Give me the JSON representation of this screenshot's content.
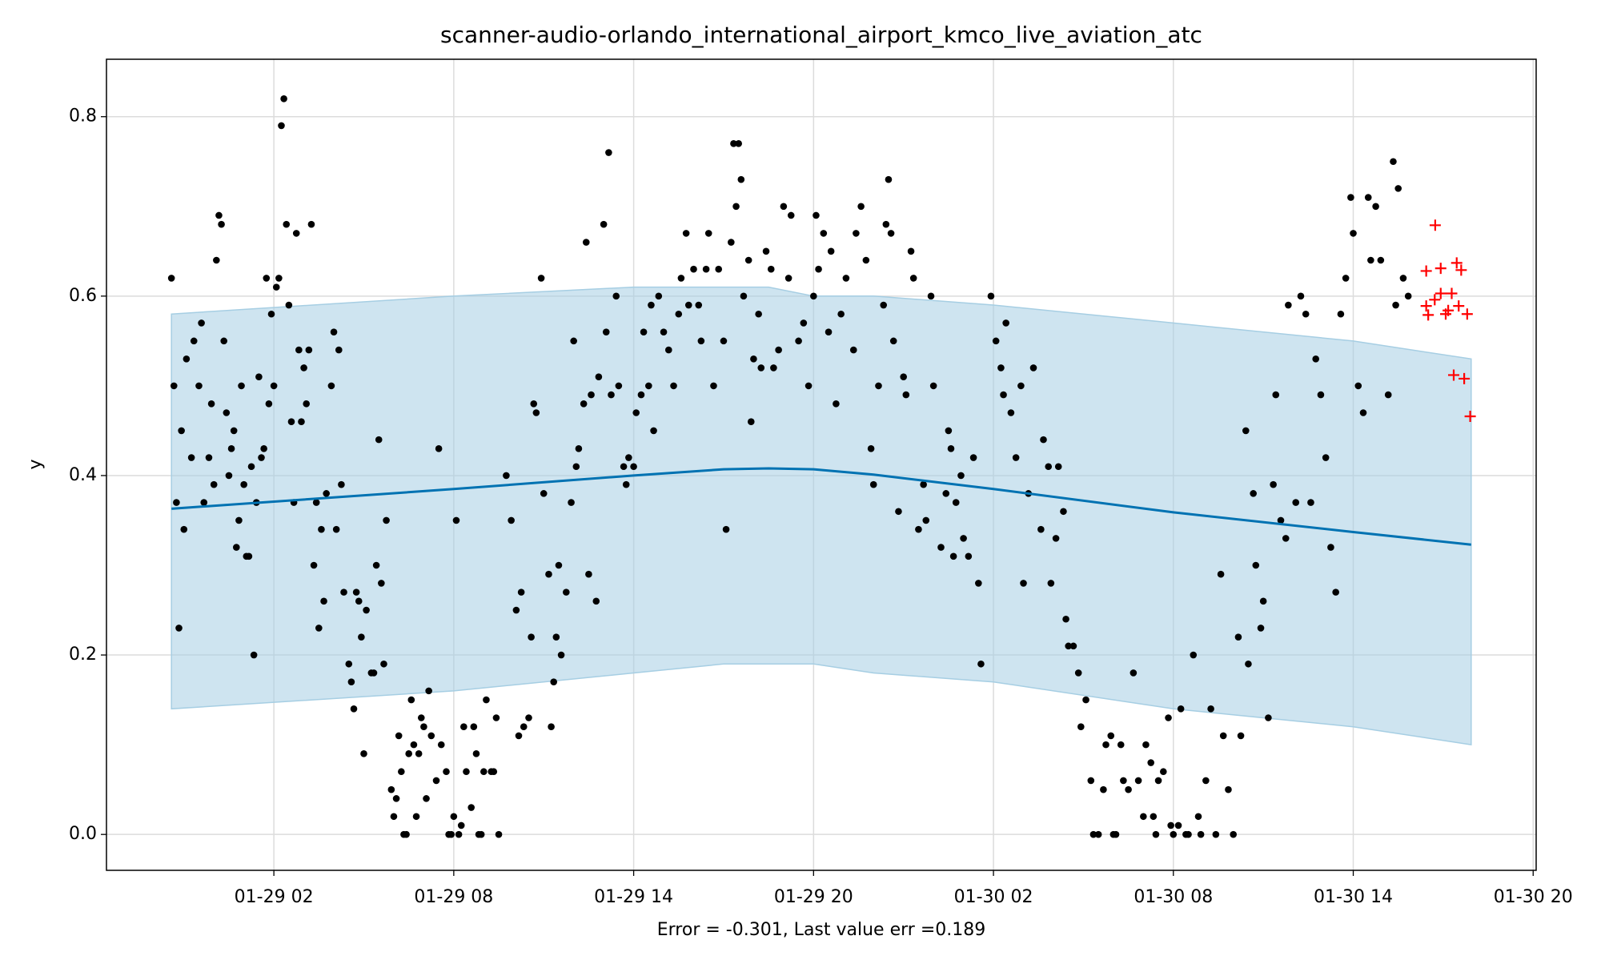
{
  "chart_data": {
    "type": "forecast",
    "title": "scanner-audio-orlando_international_airport_kmco_live_aviation_atc",
    "xlabel": "Error = -0.301, Last value err =0.189",
    "ylabel": "y",
    "xlim": [
      "01-28 20:25",
      "01-30 20:06"
    ],
    "xticks": [
      "01-29 02",
      "01-29 08",
      "01-29 14",
      "01-29 20",
      "01-30 02",
      "01-30 08",
      "01-30 14",
      "01-30 20"
    ],
    "ylim": [
      -0.04,
      0.864
    ],
    "yticks": [
      {
        "value": 0,
        "label": "0.0"
      },
      0.2,
      0.4,
      0.6,
      0.8
    ],
    "grid": true,
    "forecast": {
      "color": "#0072b2",
      "band_color": "#a6cee3",
      "x": [
        "01-28 22:35",
        "01-29 08:00",
        "01-29 14:00",
        "01-29 17:00",
        "01-29 18:30",
        "01-29 20:00",
        "01-29 22:00",
        "01-30 02:00",
        "01-30 08:00",
        "01-30 14:00",
        "01-30 17:56"
      ],
      "values": [
        0.363,
        0.385,
        0.4,
        0.407,
        0.408,
        0.407,
        0.401,
        0.385,
        0.359,
        0.337,
        0.323
      ],
      "upper": [
        0.58,
        0.6,
        0.61,
        0.61,
        0.61,
        0.6,
        0.6,
        0.59,
        0.57,
        0.55,
        0.53
      ],
      "lower": [
        0.14,
        0.16,
        0.18,
        0.19,
        0.19,
        0.19,
        0.18,
        0.17,
        0.14,
        0.12,
        0.1
      ]
    },
    "points": {
      "color": "#000000",
      "x": [
        "01-28 22:35",
        "01-28 22:40",
        "01-28 22:45",
        "01-28 22:50",
        "01-28 22:55",
        "01-28 23:00",
        "01-28 23:05",
        "01-28 23:15",
        "01-28 23:20",
        "01-28 23:30",
        "01-28 23:35",
        "01-28 23:40",
        "01-28 23:50",
        "01-28 23:55",
        "01-29 00:00",
        "01-29 00:05",
        "01-29 00:10",
        "01-29 00:15",
        "01-29 00:20",
        "01-29 00:25",
        "01-29 00:30",
        "01-29 00:35",
        "01-29 00:40",
        "01-29 00:45",
        "01-29 00:50",
        "01-29 00:55",
        "01-29 01:00",
        "01-29 01:05",
        "01-29 01:10",
        "01-29 01:15",
        "01-29 01:20",
        "01-29 01:25",
        "01-29 01:30",
        "01-29 01:35",
        "01-29 01:40",
        "01-29 01:45",
        "01-29 01:50",
        "01-29 01:55",
        "01-29 02:00",
        "01-29 02:05",
        "01-29 02:10",
        "01-29 02:15",
        "01-29 02:20",
        "01-29 02:25",
        "01-29 02:30",
        "01-29 02:35",
        "01-29 02:40",
        "01-29 02:45",
        "01-29 02:50",
        "01-29 02:55",
        "01-29 03:00",
        "01-29 03:05",
        "01-29 03:10",
        "01-29 03:15",
        "01-29 03:20",
        "01-29 03:25",
        "01-29 03:30",
        "01-29 03:35",
        "01-29 03:40",
        "01-29 03:45",
        "01-29 03:55",
        "01-29 04:00",
        "01-29 04:05",
        "01-29 04:10",
        "01-29 04:15",
        "01-29 04:20",
        "01-29 04:30",
        "01-29 04:35",
        "01-29 04:40",
        "01-29 04:45",
        "01-29 04:50",
        "01-29 04:55",
        "01-29 05:00",
        "01-29 05:05",
        "01-29 05:15",
        "01-29 05:20",
        "01-29 05:25",
        "01-29 05:30",
        "01-29 05:35",
        "01-29 05:40",
        "01-29 05:45",
        "01-29 05:55",
        "01-29 06:00",
        "01-29 06:05",
        "01-29 06:10",
        "01-29 06:15",
        "01-29 06:20",
        "01-29 06:25",
        "01-29 06:30",
        "01-29 06:35",
        "01-29 06:40",
        "01-29 06:45",
        "01-29 06:50",
        "01-29 06:55",
        "01-29 07:00",
        "01-29 07:05",
        "01-29 07:10",
        "01-29 07:15",
        "01-29 07:25",
        "01-29 07:30",
        "01-29 07:35",
        "01-29 07:45",
        "01-29 07:50",
        "01-29 07:55",
        "01-29 08:00",
        "01-29 08:05",
        "01-29 08:10",
        "01-29 08:15",
        "01-29 08:20",
        "01-29 08:25",
        "01-29 08:35",
        "01-29 08:40",
        "01-29 08:45",
        "01-29 08:50",
        "01-29 08:55",
        "01-29 09:00",
        "01-29 09:05",
        "01-29 09:15",
        "01-29 09:20",
        "01-29 09:25",
        "01-29 09:30",
        "01-29 09:45",
        "01-29 09:55",
        "01-29 10:05",
        "01-29 10:10",
        "01-29 10:15",
        "01-29 10:20",
        "01-29 10:30",
        "01-29 10:35",
        "01-29 10:40",
        "01-29 10:45",
        "01-29 10:55",
        "01-29 11:00",
        "01-29 11:10",
        "01-29 11:15",
        "01-29 11:20",
        "01-29 11:25",
        "01-29 11:30",
        "01-29 11:35",
        "01-29 11:45",
        "01-29 11:55",
        "01-29 12:00",
        "01-29 12:05",
        "01-29 12:10",
        "01-29 12:20",
        "01-29 12:25",
        "01-29 12:30",
        "01-29 12:35",
        "01-29 12:45",
        "01-29 12:50",
        "01-29 13:00",
        "01-29 13:05",
        "01-29 13:10",
        "01-29 13:15",
        "01-29 13:25",
        "01-29 13:30",
        "01-29 13:40",
        "01-29 13:45",
        "01-29 13:50",
        "01-29 14:00",
        "01-29 14:05",
        "01-29 14:15",
        "01-29 14:20",
        "01-29 14:30",
        "01-29 14:35",
        "01-29 14:40",
        "01-29 14:50",
        "01-29 15:00",
        "01-29 15:10",
        "01-29 15:20",
        "01-29 15:30",
        "01-29 15:35",
        "01-29 15:45",
        "01-29 15:50",
        "01-29 16:00",
        "01-29 16:10",
        "01-29 16:15",
        "01-29 16:25",
        "01-29 16:30",
        "01-29 16:40",
        "01-29 16:50",
        "01-29 17:00",
        "01-29 17:05",
        "01-29 17:15",
        "01-29 17:20",
        "01-29 17:25",
        "01-29 17:30",
        "01-29 17:35",
        "01-29 17:40",
        "01-29 17:50",
        "01-29 17:55",
        "01-29 18:00",
        "01-29 18:10",
        "01-29 18:15",
        "01-29 18:25",
        "01-29 18:35",
        "01-29 18:40",
        "01-29 18:50",
        "01-29 19:00",
        "01-29 19:10",
        "01-29 19:15",
        "01-29 19:30",
        "01-29 19:40",
        "01-29 19:50",
        "01-29 20:00",
        "01-29 20:05",
        "01-29 20:10",
        "01-29 20:20",
        "01-29 20:30",
        "01-29 20:35",
        "01-29 20:45",
        "01-29 20:55",
        "01-29 21:05",
        "01-29 21:20",
        "01-29 21:25",
        "01-29 21:35",
        "01-29 21:45",
        "01-29 21:55",
        "01-29 22:00",
        "01-29 22:10",
        "01-29 22:20",
        "01-29 22:25",
        "01-29 22:30",
        "01-29 22:35",
        "01-29 22:40",
        "01-29 22:50",
        "01-29 23:00",
        "01-29 23:05",
        "01-29 23:15",
        "01-29 23:20",
        "01-29 23:30",
        "01-29 23:40",
        "01-29 23:45",
        "01-29 23:55",
        "01-30 00:00",
        "01-30 00:15",
        "01-30 00:25",
        "01-30 00:30",
        "01-30 00:35",
        "01-30 00:40",
        "01-30 00:45",
        "01-30 00:55",
        "01-30 01:00",
        "01-30 01:10",
        "01-30 01:20",
        "01-30 01:30",
        "01-30 01:35",
        "01-30 01:55",
        "01-30 02:05",
        "01-30 02:15",
        "01-30 02:20",
        "01-30 02:25",
        "01-30 02:35",
        "01-30 02:45",
        "01-30 02:55",
        "01-30 03:00",
        "01-30 03:10",
        "01-30 03:20",
        "01-30 03:35",
        "01-30 03:40",
        "01-30 03:50",
        "01-30 03:55",
        "01-30 04:05",
        "01-30 04:10",
        "01-30 04:20",
        "01-30 04:25",
        "01-30 04:30",
        "01-30 04:40",
        "01-30 04:50",
        "01-30 04:55",
        "01-30 05:05",
        "01-30 05:15",
        "01-30 05:20",
        "01-30 05:30",
        "01-30 05:40",
        "01-30 05:45",
        "01-30 05:55",
        "01-30 06:00",
        "01-30 06:05",
        "01-30 06:15",
        "01-30 06:20",
        "01-30 06:30",
        "01-30 06:40",
        "01-30 06:50",
        "01-30 07:00",
        "01-30 07:05",
        "01-30 07:15",
        "01-30 07:20",
        "01-30 07:25",
        "01-30 07:30",
        "01-30 07:40",
        "01-30 07:50",
        "01-30 07:55",
        "01-30 08:00",
        "01-30 08:10",
        "01-30 08:15",
        "01-30 08:25",
        "01-30 08:30",
        "01-30 08:40",
        "01-30 08:50",
        "01-30 08:55",
        "01-30 09:05",
        "01-30 09:15",
        "01-30 09:25",
        "01-30 09:35",
        "01-30 09:40",
        "01-30 09:50",
        "01-30 10:00",
        "01-30 10:10",
        "01-30 10:15",
        "01-30 10:25",
        "01-30 10:30",
        "01-30 10:40",
        "01-30 10:45",
        "01-30 10:55",
        "01-30 11:00",
        "01-30 11:10",
        "01-30 11:20",
        "01-30 11:25",
        "01-30 11:35",
        "01-30 11:45",
        "01-30 11:50",
        "01-30 12:05",
        "01-30 12:15",
        "01-30 12:25",
        "01-30 12:35",
        "01-30 12:45",
        "01-30 12:55",
        "01-30 13:05",
        "01-30 13:15",
        "01-30 13:25",
        "01-30 13:35",
        "01-30 13:45",
        "01-30 13:55",
        "01-30 14:00",
        "01-30 14:10",
        "01-30 14:20",
        "01-30 14:30",
        "01-30 14:35",
        "01-30 14:45",
        "01-30 14:55",
        "01-30 15:10",
        "01-30 15:20",
        "01-30 15:25",
        "01-30 15:30",
        "01-30 15:40",
        "01-30 15:50"
      ],
      "values": [
        0.62,
        0.5,
        0.37,
        0.23,
        0.45,
        0.34,
        0.53,
        0.42,
        0.55,
        0.5,
        0.57,
        0.37,
        0.42,
        0.48,
        0.39,
        0.64,
        0.69,
        0.68,
        0.55,
        0.47,
        0.4,
        0.43,
        0.45,
        0.32,
        0.35,
        0.5,
        0.39,
        0.31,
        0.31,
        0.41,
        0.2,
        0.37,
        0.51,
        0.42,
        0.43,
        0.62,
        0.48,
        0.58,
        0.5,
        0.61,
        0.62,
        0.79,
        0.82,
        0.68,
        0.59,
        0.46,
        0.37,
        0.67,
        0.54,
        0.46,
        0.52,
        0.48,
        0.54,
        0.68,
        0.3,
        0.37,
        0.23,
        0.34,
        0.26,
        0.38,
        0.5,
        0.56,
        0.34,
        0.54,
        0.39,
        0.27,
        0.19,
        0.17,
        0.14,
        0.27,
        0.26,
        0.22,
        0.09,
        0.25,
        0.18,
        0.18,
        0.3,
        0.44,
        0.28,
        0.19,
        0.35,
        0.05,
        0.02,
        0.04,
        0.11,
        0.07,
        0.0,
        0.0,
        0.09,
        0.15,
        0.1,
        0.02,
        0.09,
        0.13,
        0.12,
        0.04,
        0.16,
        0.11,
        0.06,
        0.43,
        0.1,
        0.07,
        0.0,
        0.0,
        0.02,
        0.35,
        0.0,
        0.01,
        0.12,
        0.07,
        0.03,
        0.12,
        0.09,
        0.0,
        0.0,
        0.07,
        0.15,
        0.07,
        0.07,
        0.13,
        0.0,
        0.4,
        0.35,
        0.25,
        0.11,
        0.27,
        0.12,
        0.13,
        0.22,
        0.48,
        0.47,
        0.62,
        0.38,
        0.29,
        0.12,
        0.17,
        0.22,
        0.3,
        0.2,
        0.27,
        0.37,
        0.55,
        0.41,
        0.43,
        0.48,
        0.66,
        0.29,
        0.49,
        0.26,
        0.51,
        0.68,
        0.56,
        0.76,
        0.49,
        0.6,
        0.5,
        0.41,
        0.39,
        0.42,
        0.41,
        0.47,
        0.49,
        0.56,
        0.5,
        0.59,
        0.45,
        0.6,
        0.56,
        0.54,
        0.5,
        0.58,
        0.62,
        0.67,
        0.59,
        0.63,
        0.59,
        0.55,
        0.63,
        0.67,
        0.5,
        0.63,
        0.55,
        0.34,
        0.66,
        0.77,
        0.7,
        0.77,
        0.73,
        0.6,
        0.64,
        0.46,
        0.53,
        0.58,
        0.52,
        0.65,
        0.63,
        0.52,
        0.54,
        0.7,
        0.62,
        0.69,
        0.55,
        0.57,
        0.5,
        0.6,
        0.69,
        0.63,
        0.67,
        0.56,
        0.65,
        0.48,
        0.58,
        0.62,
        0.54,
        0.67,
        0.7,
        0.64,
        0.43,
        0.39,
        0.5,
        0.59,
        0.68,
        0.73,
        0.67,
        0.55,
        0.36,
        0.51,
        0.49,
        0.65,
        0.62,
        0.34,
        0.39,
        0.35,
        0.6,
        0.5,
        0.32,
        0.38,
        0.45,
        0.43,
        0.31,
        0.37,
        0.4,
        0.33,
        0.31,
        0.42,
        0.28,
        0.19,
        0.6,
        0.55,
        0.52,
        0.49,
        0.57,
        0.47,
        0.42,
        0.5,
        0.28,
        0.38,
        0.52,
        0.34,
        0.44,
        0.41,
        0.28,
        0.33,
        0.41,
        0.36,
        0.24,
        0.21,
        0.21,
        0.18,
        0.12,
        0.15,
        0.06,
        0.0,
        0.0,
        0.05,
        0.1,
        0.11,
        0.0,
        0.0,
        0.1,
        0.06,
        0.05,
        0.18,
        0.06,
        0.02,
        0.1,
        0.08,
        0.02,
        0.0,
        0.06,
        0.07,
        0.13,
        0.01,
        0.0,
        0.01,
        0.14,
        0.0,
        0.0,
        0.2,
        0.02,
        0.0,
        0.06,
        0.14,
        0.0,
        0.29,
        0.11,
        0.05,
        0.0,
        0.22,
        0.11,
        0.45,
        0.19,
        0.38,
        0.3,
        0.23,
        0.26,
        0.13,
        0.39,
        0.49,
        0.35,
        0.33,
        0.59,
        0.37,
        0.6,
        0.58,
        0.37,
        0.53,
        0.49,
        0.42,
        0.32,
        0.27,
        0.58,
        0.62,
        0.71,
        0.67,
        0.5,
        0.47,
        0.71,
        0.64,
        0.7,
        0.64,
        0.49,
        0.75,
        0.59,
        0.72,
        0.62,
        0.6
      ]
    },
    "anomalies": {
      "color": "#ff0000",
      "x": [
        "01-30 16:26",
        "01-30 16:30",
        "01-30 16:26",
        "01-30 16:44",
        "01-30 16:43",
        "01-30 16:55",
        "01-30 16:55",
        "01-30 17:05",
        "01-30 17:10",
        "01-30 17:17",
        "01-30 17:27",
        "01-30 17:36",
        "01-30 17:31",
        "01-30 17:21",
        "01-30 17:42",
        "01-30 17:48",
        "01-30 17:54"
      ],
      "values": [
        0.589,
        0.579,
        0.628,
        0.679,
        0.596,
        0.631,
        0.603,
        0.58,
        0.584,
        0.603,
        0.637,
        0.629,
        0.589,
        0.512,
        0.508,
        0.58,
        0.466
      ]
    }
  }
}
